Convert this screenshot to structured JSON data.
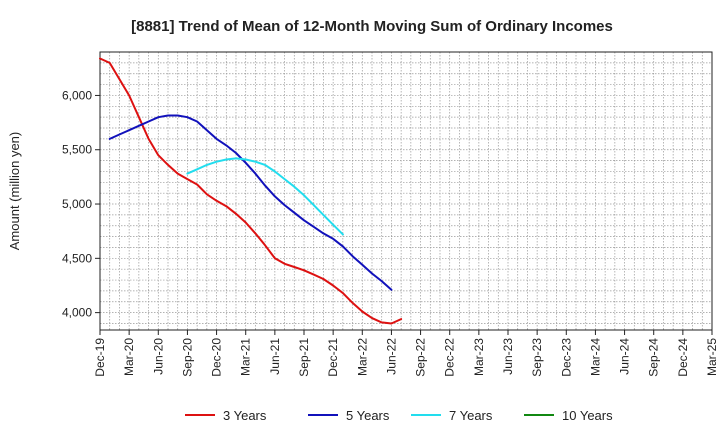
{
  "chart_data": {
    "type": "line",
    "title": "[8881]  Trend of Mean of 12-Month Moving Sum of Ordinary Incomes",
    "ylabel": "Amount (million yen)",
    "xlabel": "",
    "ylim": [
      3840,
      6400
    ],
    "yticks": [
      4000,
      4500,
      5000,
      5500,
      6000
    ],
    "ytick_labels": [
      "4,000",
      "4,500",
      "5,000",
      "5,500",
      "6,000"
    ],
    "xtick_labels": [
      "Dec-19",
      "Mar-20",
      "Jun-20",
      "Sep-20",
      "Dec-20",
      "Mar-21",
      "Jun-21",
      "Sep-21",
      "Dec-21",
      "Mar-22",
      "Jun-22",
      "Sep-22",
      "Dec-22",
      "Mar-23",
      "Jun-23",
      "Sep-23",
      "Dec-23",
      "Mar-24",
      "Jun-24",
      "Sep-24",
      "Dec-24",
      "Mar-25"
    ],
    "grid": true,
    "legend_position": "bottom",
    "series": [
      {
        "name": "3 Years",
        "color": "#dd1111",
        "start_index": 0,
        "values": [
          6340,
          6300,
          6150,
          6000,
          5800,
          5600,
          5450,
          5360,
          5280,
          5230,
          5180,
          5090,
          5030,
          4980,
          4910,
          4830,
          4730,
          4620,
          4500,
          4450,
          4420,
          4390,
          4350,
          4310,
          4250,
          4180,
          4090,
          4010,
          3950,
          3910,
          3900,
          3940
        ]
      },
      {
        "name": "5 Years",
        "color": "#1111bb",
        "start_index": 1,
        "values": [
          5600,
          5640,
          5680,
          5720,
          5760,
          5800,
          5815,
          5815,
          5800,
          5760,
          5680,
          5600,
          5540,
          5470,
          5380,
          5280,
          5170,
          5070,
          4990,
          4920,
          4850,
          4790,
          4730,
          4680,
          4610,
          4520,
          4440,
          4360,
          4290,
          4210
        ]
      },
      {
        "name": "7 Years",
        "color": "#22ddee",
        "start_index": 9,
        "values": [
          5280,
          5320,
          5360,
          5390,
          5410,
          5420,
          5410,
          5390,
          5360,
          5300,
          5230,
          5160,
          5080,
          4990,
          4900,
          4810,
          4720
        ]
      },
      {
        "name": "10 Years",
        "color": "#118811",
        "start_index": 0,
        "values": []
      }
    ]
  }
}
